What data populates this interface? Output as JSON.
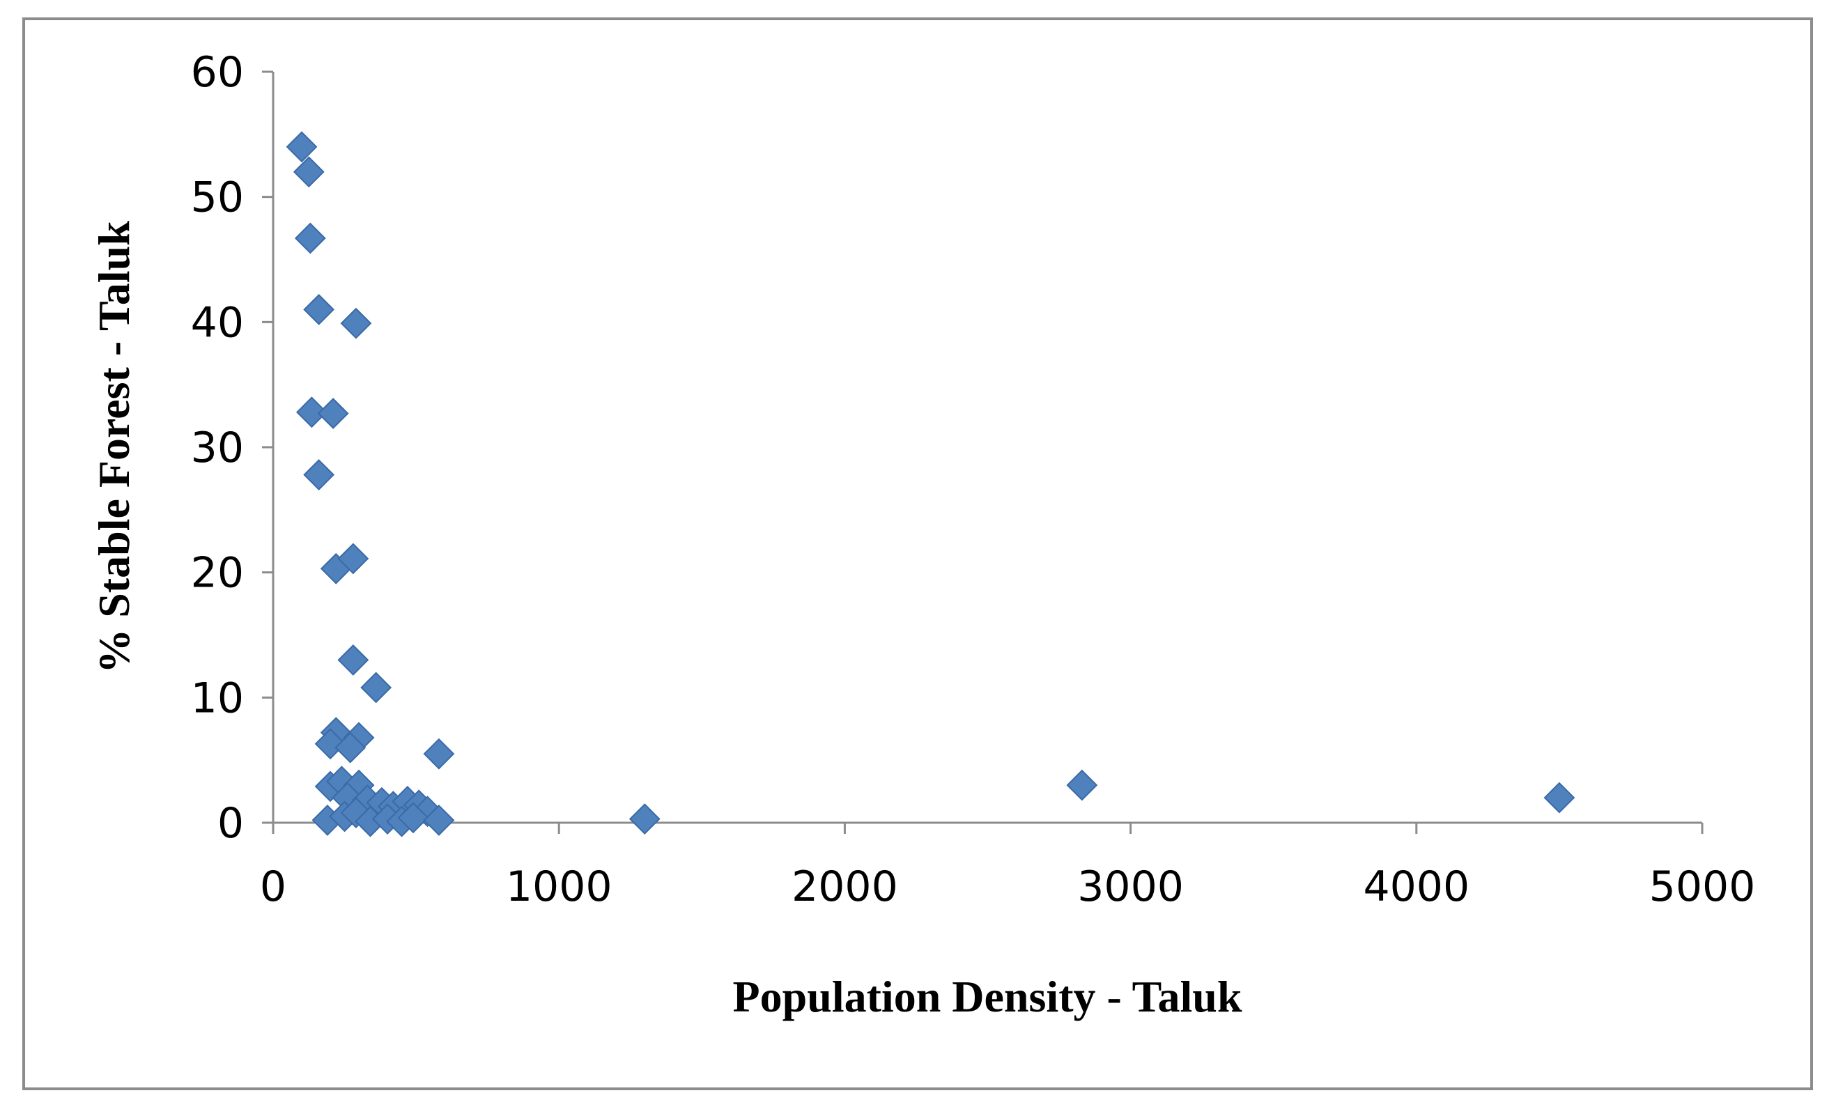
{
  "chart_data": {
    "type": "scatter",
    "xlabel": "Population Density - Taluk",
    "ylabel": "% Stable Forest - Taluk",
    "xlim": [
      0,
      5000
    ],
    "ylim": [
      0,
      60
    ],
    "x_ticks": [
      "0",
      "1000",
      "2000",
      "3000",
      "4000",
      "5000"
    ],
    "y_ticks": [
      "0",
      "10",
      "20",
      "30",
      "40",
      "50",
      "60"
    ],
    "x_tick_values": [
      0,
      1000,
      2000,
      3000,
      4000,
      5000
    ],
    "y_tick_values": [
      0,
      10,
      20,
      30,
      40,
      50,
      60
    ],
    "grid": false,
    "legend": "none",
    "marker": "diamond",
    "marker_color": "#4f81bd",
    "points": [
      {
        "x": 100,
        "y": 54
      },
      {
        "x": 125,
        "y": 52
      },
      {
        "x": 130,
        "y": 46.7
      },
      {
        "x": 160,
        "y": 41
      },
      {
        "x": 290,
        "y": 39.9
      },
      {
        "x": 135,
        "y": 32.8
      },
      {
        "x": 210,
        "y": 32.7
      },
      {
        "x": 160,
        "y": 27.8
      },
      {
        "x": 220,
        "y": 20.3
      },
      {
        "x": 280,
        "y": 21.1
      },
      {
        "x": 280,
        "y": 13
      },
      {
        "x": 360,
        "y": 10.8
      },
      {
        "x": 220,
        "y": 7.2
      },
      {
        "x": 200,
        "y": 6.3
      },
      {
        "x": 300,
        "y": 6.8
      },
      {
        "x": 270,
        "y": 6
      },
      {
        "x": 580,
        "y": 5.5
      },
      {
        "x": 200,
        "y": 2.9
      },
      {
        "x": 240,
        "y": 3.3
      },
      {
        "x": 300,
        "y": 3
      },
      {
        "x": 260,
        "y": 2
      },
      {
        "x": 330,
        "y": 1.8
      },
      {
        "x": 380,
        "y": 1.6
      },
      {
        "x": 420,
        "y": 1.3
      },
      {
        "x": 470,
        "y": 1.7
      },
      {
        "x": 510,
        "y": 1.4
      },
      {
        "x": 540,
        "y": 0.9
      },
      {
        "x": 190,
        "y": 0.2
      },
      {
        "x": 250,
        "y": 0.5
      },
      {
        "x": 290,
        "y": 0.8
      },
      {
        "x": 340,
        "y": 0.1
      },
      {
        "x": 400,
        "y": 0.3
      },
      {
        "x": 450,
        "y": 0.1
      },
      {
        "x": 490,
        "y": 0.4
      },
      {
        "x": 580,
        "y": 0.2
      },
      {
        "x": 1300,
        "y": 0.3
      },
      {
        "x": 2830,
        "y": 3
      },
      {
        "x": 4500,
        "y": 2
      }
    ]
  }
}
